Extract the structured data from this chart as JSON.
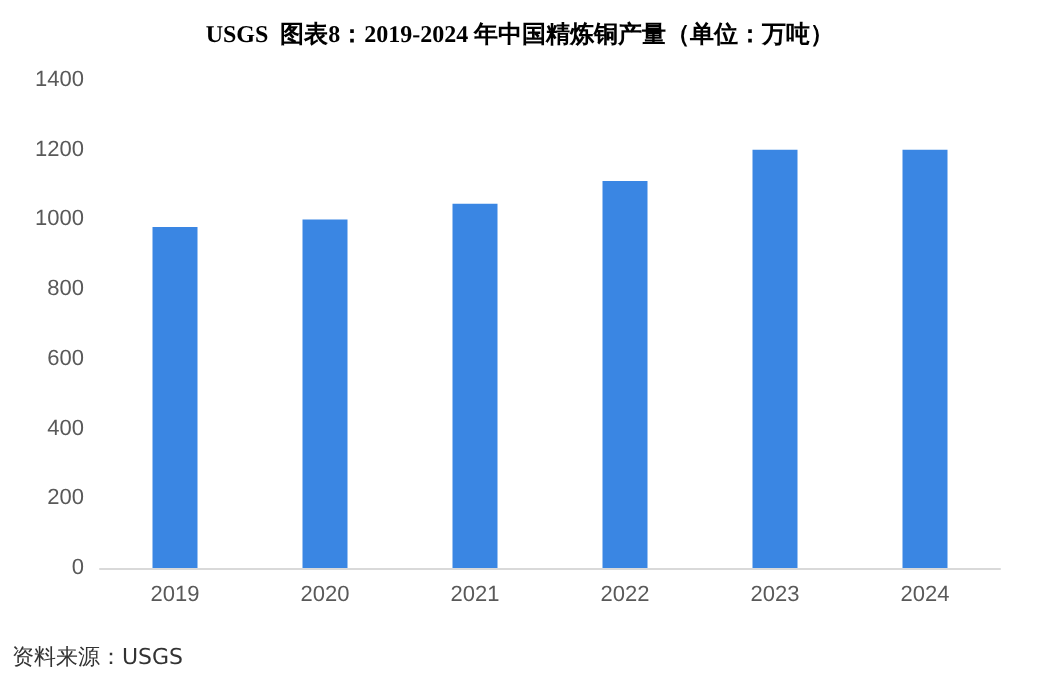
{
  "chart_data": {
    "type": "bar",
    "title": "USGS  图表8：2019-2024 年中国精炼铜产量（单位：万吨）",
    "categories": [
      "2019",
      "2020",
      "2021",
      "2022",
      "2023",
      "2024"
    ],
    "values": [
      978,
      1000,
      1045,
      1110,
      1200,
      1200
    ],
    "color": "#3a86e3",
    "ylim": [
      0,
      1400
    ],
    "yticks": [
      0,
      200,
      400,
      600,
      800,
      1000,
      1200,
      1400
    ],
    "grid": false,
    "annotations": [
      "资料来源：USGS"
    ]
  }
}
